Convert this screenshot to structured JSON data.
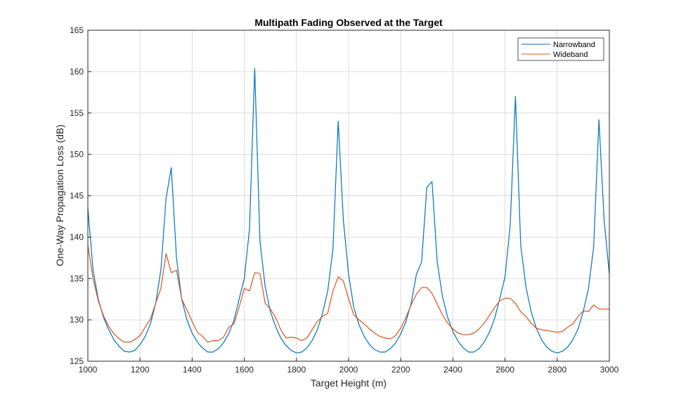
{
  "chart_data": {
    "type": "line",
    "title": "Multipath Fading Observed at the Target",
    "xlabel": "Target Height (m)",
    "ylabel": "One-Way Propagation Loss (dB)",
    "xlim": [
      1000,
      3000
    ],
    "ylim": [
      125,
      165
    ],
    "xticks": [
      1000,
      1200,
      1400,
      1600,
      1800,
      2000,
      2200,
      2400,
      2600,
      2800,
      3000
    ],
    "yticks": [
      125,
      130,
      135,
      140,
      145,
      150,
      155,
      160,
      165
    ],
    "grid": true,
    "legend_placement": "top-right",
    "x_start": 1000,
    "x_step": 20,
    "series": [
      {
        "name": "Narrowband",
        "color": "#0072BD",
        "values": [
          143.5,
          136,
          132.5,
          130.3,
          128.8,
          127.6,
          126.8,
          126.2,
          126.1,
          126.3,
          127,
          128,
          129.5,
          132,
          136,
          144.7,
          148.4,
          137.5,
          132.5,
          130,
          128.4,
          127.3,
          126.6,
          126.1,
          126.1,
          126.5,
          127.2,
          128.3,
          129.9,
          132.5,
          135,
          141,
          160.4,
          139.5,
          134,
          131,
          129.2,
          127.8,
          126.9,
          126.3,
          126.0,
          126.1,
          126.6,
          127.5,
          128.8,
          130.8,
          133.5,
          138.5,
          154,
          142,
          135.5,
          131.5,
          129.4,
          128,
          127,
          126.4,
          126.1,
          126.1,
          126.5,
          127.2,
          128.3,
          129.8,
          132,
          135.5,
          137,
          146,
          146.7,
          137,
          132.8,
          130.3,
          128.6,
          127.4,
          126.6,
          126.1,
          126.1,
          126.5,
          127.3,
          128.5,
          130.2,
          132.6,
          135.2,
          141.5,
          157,
          139,
          134,
          131,
          129,
          127.6,
          126.7,
          126.2,
          126.0,
          126.2,
          126.7,
          127.6,
          128.9,
          131,
          133.8,
          138.8,
          154.2,
          142,
          135.5
        ]
      },
      {
        "name": "Wideband",
        "color": "#D95319",
        "values": [
          139,
          135,
          132.3,
          130.5,
          129.2,
          128.3,
          127.7,
          127.3,
          127.3,
          127.6,
          128.1,
          129.1,
          130.1,
          132,
          133.8,
          138,
          135.7,
          136,
          132.5,
          131.2,
          129.8,
          128.5,
          128,
          127.3,
          127.5,
          127.5,
          127.9,
          129.1,
          129.5,
          131.5,
          133.8,
          133.5,
          135.7,
          135.6,
          132,
          131.3,
          130.3,
          128.8,
          127.8,
          127.9,
          127.8,
          127.5,
          127.8,
          128.8,
          129.8,
          130.4,
          130.8,
          133.5,
          135.2,
          134.7,
          132.5,
          130.6,
          130,
          129.5,
          128.9,
          128.4,
          128,
          127.8,
          127.7,
          128.1,
          129,
          130.3,
          131.8,
          133.1,
          133.9,
          133.9,
          133.2,
          131.9,
          130.6,
          129.6,
          128.9,
          128.4,
          128.2,
          128.2,
          128.4,
          128.9,
          129.6,
          130.5,
          131.5,
          132.3,
          132.6,
          132.6,
          132,
          131,
          130.4,
          129.6,
          129,
          128.8,
          128.7,
          128.6,
          128.5,
          128.6,
          129.1,
          129.5,
          130.4,
          131.1,
          131,
          131.8,
          131.3,
          131.3,
          131.3
        ]
      }
    ]
  }
}
